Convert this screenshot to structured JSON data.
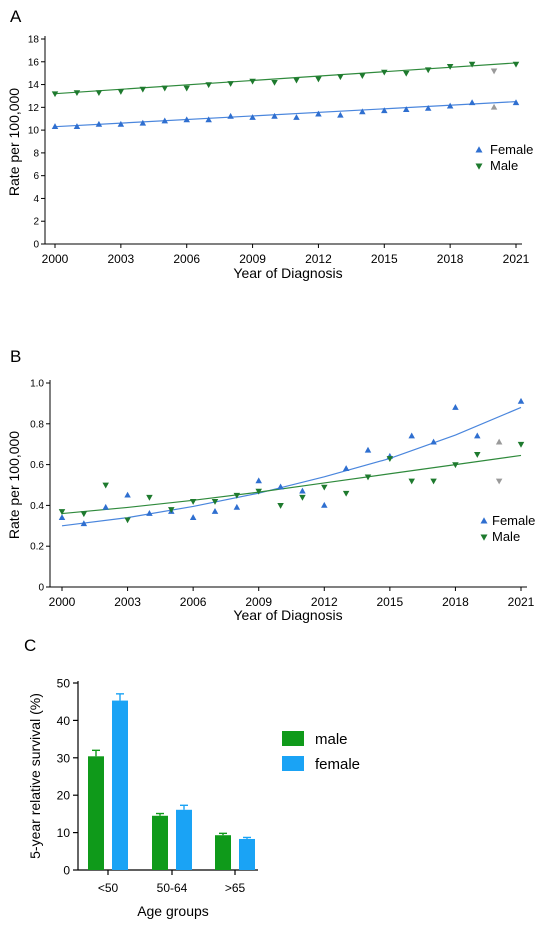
{
  "colors": {
    "female_marker": "#2f6fd0",
    "male_marker": "#1e7a2e",
    "female_line": "#4a86dd",
    "male_line": "#2f8a3c",
    "excluded_marker": "#9a9a9a",
    "male_bar": "#0f9a1a",
    "female_bar": "#1aa3f5",
    "axis": "#000000"
  },
  "chart_data": [
    {
      "panel": "A",
      "type": "scatter",
      "xlabel": "Year of Diagnosis",
      "ylabel": "Rate per 100,000",
      "xlim": [
        2000,
        2021
      ],
      "ylim": [
        0,
        18
      ],
      "x_ticks": [
        "2000",
        "2003",
        "2006",
        "2009",
        "2012",
        "2015",
        "2018",
        "2021"
      ],
      "y_ticks": [
        "0",
        "2",
        "4",
        "6",
        "8",
        "10",
        "12",
        "14",
        "16",
        "18"
      ],
      "legend_position": "right",
      "series": [
        {
          "name": "Female",
          "marker": "triangle-up",
          "color": "#2f6fd0",
          "x": [
            2000,
            2001,
            2002,
            2003,
            2004,
            2005,
            2006,
            2007,
            2008,
            2009,
            2010,
            2011,
            2012,
            2013,
            2014,
            2015,
            2016,
            2017,
            2018,
            2019,
            2021
          ],
          "y": [
            10.3,
            10.3,
            10.5,
            10.5,
            10.6,
            10.8,
            10.9,
            10.9,
            11.2,
            11.1,
            11.2,
            11.1,
            11.4,
            11.3,
            11.6,
            11.7,
            11.8,
            11.9,
            12.1,
            12.4,
            12.4
          ],
          "trend": [
            [
              2000,
              10.3
            ],
            [
              2021,
              12.5
            ]
          ]
        },
        {
          "name": "Male",
          "marker": "triangle-down",
          "color": "#1e7a2e",
          "x": [
            2000,
            2001,
            2002,
            2003,
            2004,
            2005,
            2006,
            2007,
            2008,
            2009,
            2010,
            2011,
            2012,
            2013,
            2014,
            2015,
            2016,
            2017,
            2018,
            2019,
            2021
          ],
          "y": [
            13.2,
            13.3,
            13.3,
            13.4,
            13.6,
            13.7,
            13.7,
            14.0,
            14.1,
            14.3,
            14.2,
            14.4,
            14.5,
            14.7,
            14.8,
            15.1,
            15.0,
            15.3,
            15.6,
            15.8,
            15.8
          ],
          "trend": [
            [
              2000,
              13.2
            ],
            [
              2021,
              15.9
            ]
          ]
        }
      ],
      "excluded_points": [
        {
          "series": "Female",
          "x": 2020,
          "y": 12.0
        },
        {
          "series": "Male",
          "x": 2020,
          "y": 15.2
        }
      ]
    },
    {
      "panel": "B",
      "type": "scatter",
      "xlabel": "Year of Diagnosis",
      "ylabel": "Rate per 100,000",
      "xlim": [
        2000,
        2021
      ],
      "ylim": [
        0,
        1.0
      ],
      "x_ticks": [
        "2000",
        "2003",
        "2006",
        "2009",
        "2012",
        "2015",
        "2018",
        "2021"
      ],
      "y_ticks": [
        "0",
        "0.2",
        "0.4",
        "0.6",
        "0.8",
        "1.0"
      ],
      "legend_position": "right",
      "series": [
        {
          "name": "Female",
          "marker": "triangle-up",
          "color": "#2f6fd0",
          "x": [
            2000,
            2001,
            2002,
            2003,
            2004,
            2005,
            2006,
            2007,
            2008,
            2009,
            2010,
            2011,
            2012,
            2013,
            2014,
            2015,
            2016,
            2017,
            2018,
            2019,
            2021
          ],
          "y": [
            0.34,
            0.31,
            0.39,
            0.45,
            0.36,
            0.37,
            0.34,
            0.37,
            0.39,
            0.52,
            0.49,
            0.47,
            0.4,
            0.58,
            0.67,
            0.64,
            0.74,
            0.71,
            0.88,
            0.74,
            0.91
          ],
          "trend": [
            [
              2000,
              0.3
            ],
            [
              2003,
              0.34
            ],
            [
              2006,
              0.395
            ],
            [
              2009,
              0.46
            ],
            [
              2012,
              0.54
            ],
            [
              2015,
              0.63
            ],
            [
              2018,
              0.745
            ],
            [
              2021,
              0.88
            ]
          ]
        },
        {
          "name": "Male",
          "marker": "triangle-down",
          "color": "#1e7a2e",
          "x": [
            2000,
            2001,
            2002,
            2003,
            2004,
            2005,
            2006,
            2007,
            2008,
            2009,
            2010,
            2011,
            2012,
            2013,
            2014,
            2015,
            2016,
            2017,
            2018,
            2019,
            2021
          ],
          "y": [
            0.37,
            0.36,
            0.5,
            0.33,
            0.44,
            0.38,
            0.42,
            0.42,
            0.45,
            0.47,
            0.4,
            0.44,
            0.49,
            0.46,
            0.54,
            0.63,
            0.52,
            0.52,
            0.6,
            0.65,
            0.7
          ],
          "trend": [
            [
              2000,
              0.36
            ],
            [
              2003,
              0.39
            ],
            [
              2006,
              0.425
            ],
            [
              2009,
              0.465
            ],
            [
              2012,
              0.51
            ],
            [
              2015,
              0.555
            ],
            [
              2018,
              0.6
            ],
            [
              2021,
              0.645
            ]
          ]
        }
      ],
      "excluded_points": [
        {
          "series": "Female",
          "x": 2020,
          "y": 0.71
        },
        {
          "series": "Male",
          "x": 2020,
          "y": 0.52
        }
      ]
    },
    {
      "panel": "C",
      "type": "bar",
      "xlabel": "Age groups",
      "ylabel": "5-year relative survival (%)",
      "ylim": [
        0,
        50
      ],
      "y_ticks": [
        "0",
        "10",
        "20",
        "30",
        "40",
        "50"
      ],
      "categories": [
        "<50",
        "50-64",
        ">65"
      ],
      "legend_position": "right",
      "series": [
        {
          "name": "male",
          "color": "#0f9a1a",
          "values": [
            30.4,
            14.5,
            9.3
          ],
          "errors": [
            1.6,
            0.6,
            0.5
          ]
        },
        {
          "name": "female",
          "color": "#1aa3f5",
          "values": [
            45.3,
            16.1,
            8.3
          ],
          "errors": [
            1.8,
            1.2,
            0.4
          ]
        }
      ]
    }
  ]
}
